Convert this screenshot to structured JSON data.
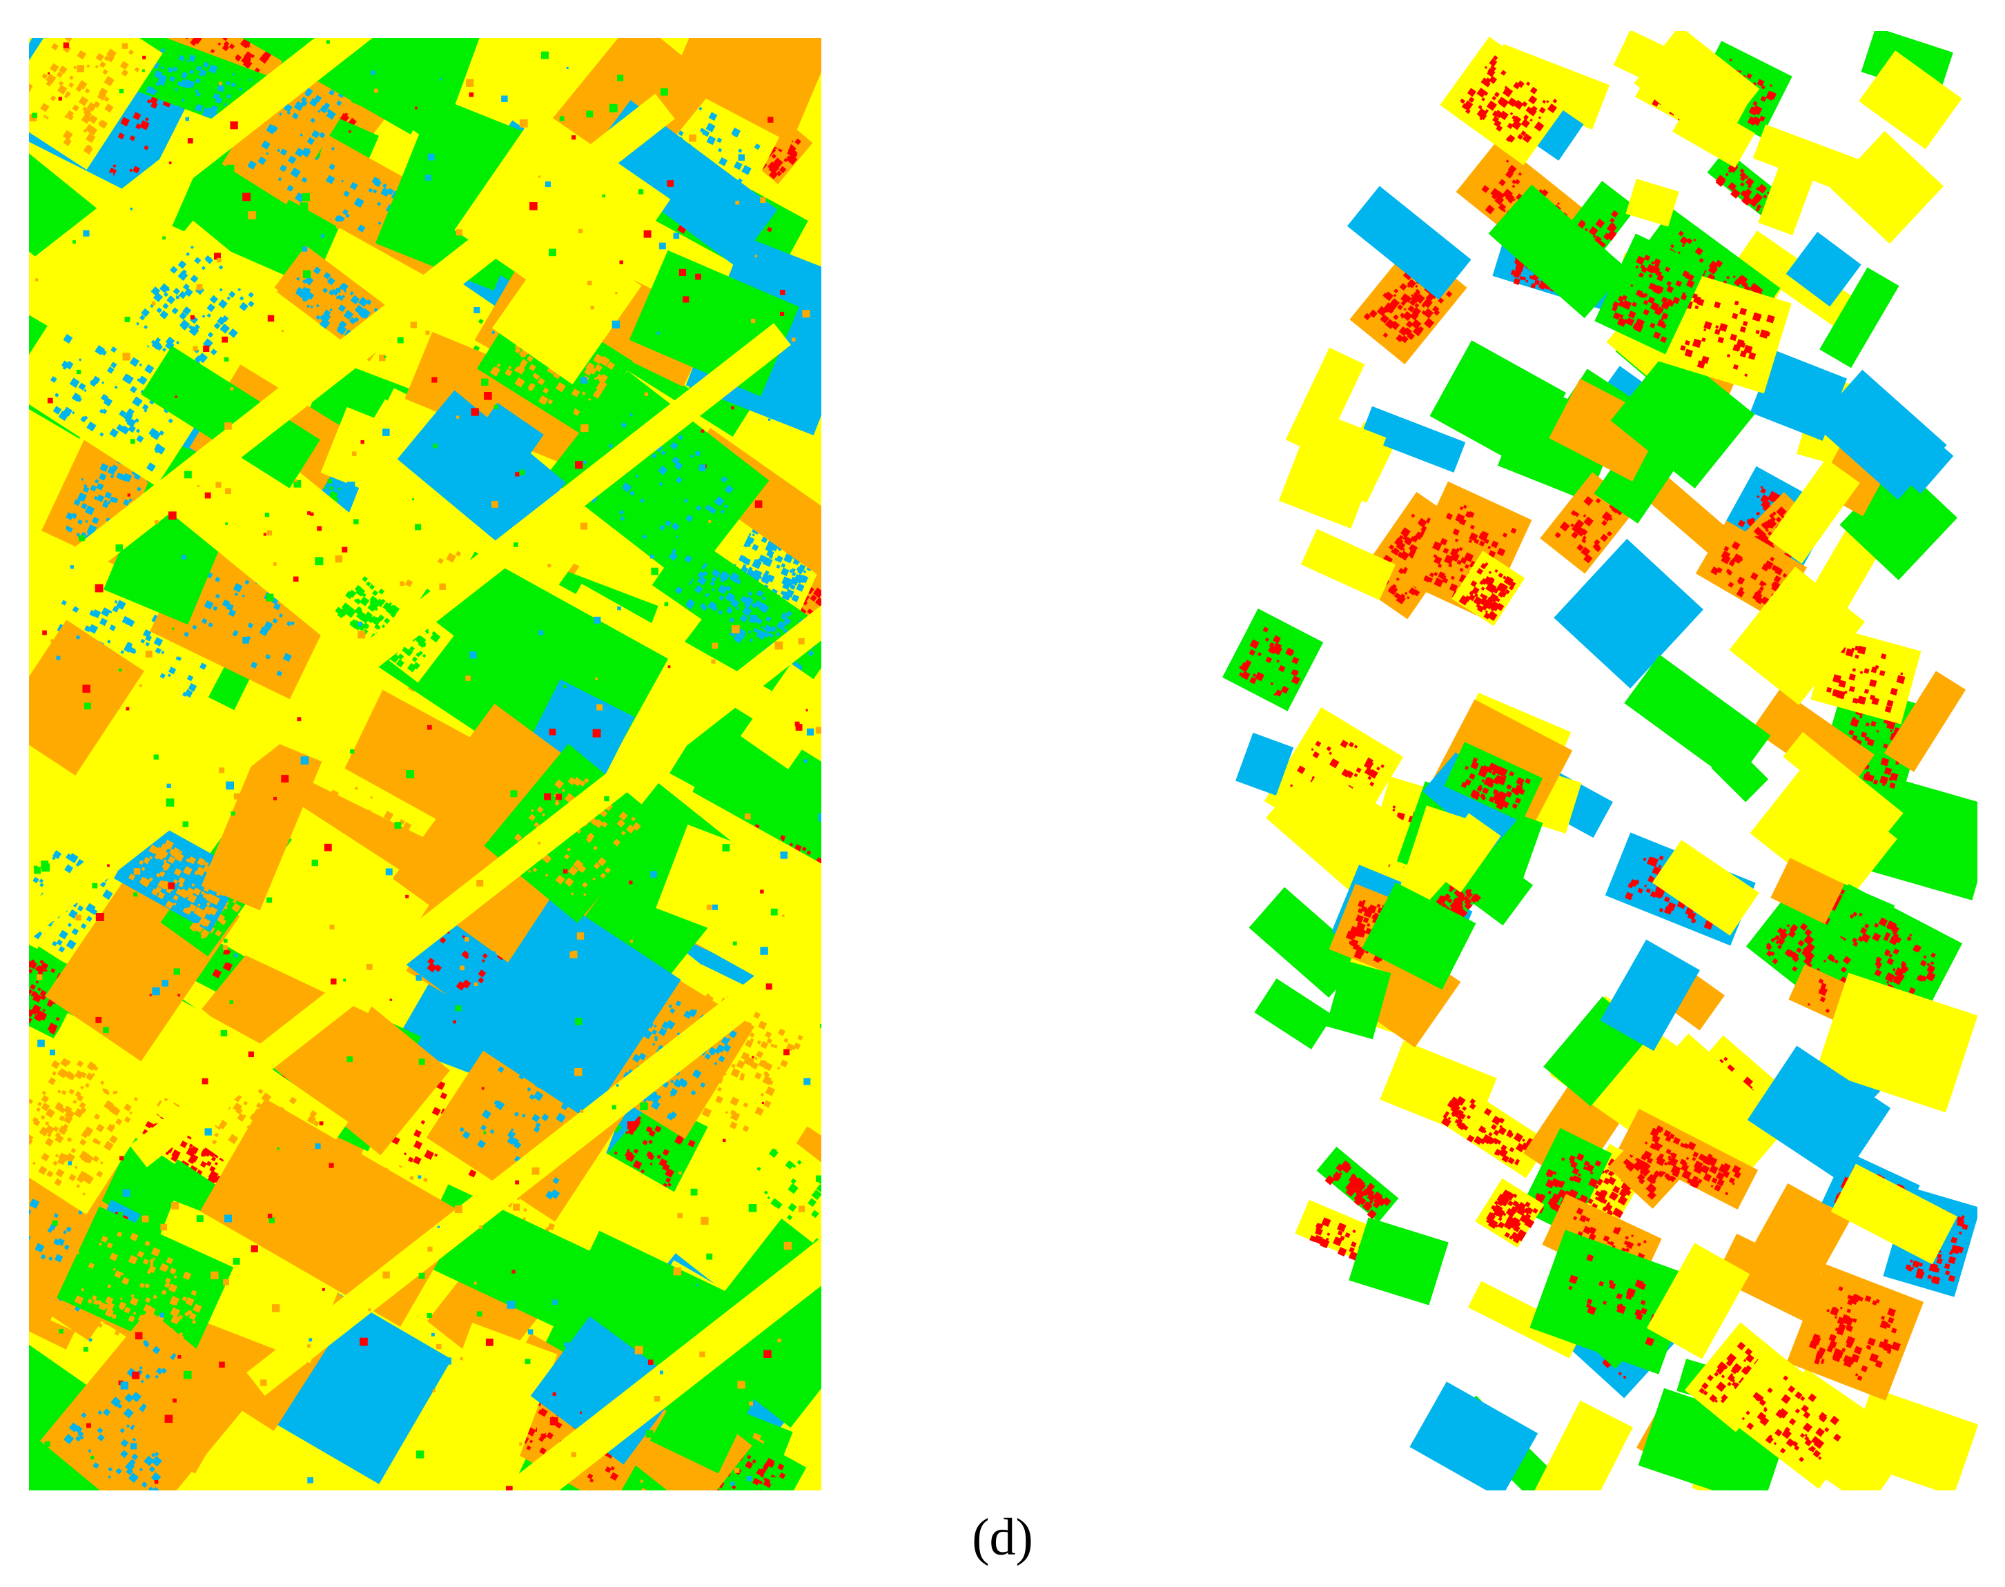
{
  "figure": {
    "caption": "(d)",
    "class_colors": {
      "yellow": "#ffff00",
      "green": "#00ee00",
      "orange": "#ffaa00",
      "red": "#ff0000",
      "blue": "#00b4ee",
      "background": "#ffffff"
    },
    "panels": [
      {
        "id": "classification-map",
        "description_kind": "full-coverage crop classification map"
      },
      {
        "id": "parcel-map",
        "description_kind": "parcel-masked classification map"
      }
    ]
  }
}
